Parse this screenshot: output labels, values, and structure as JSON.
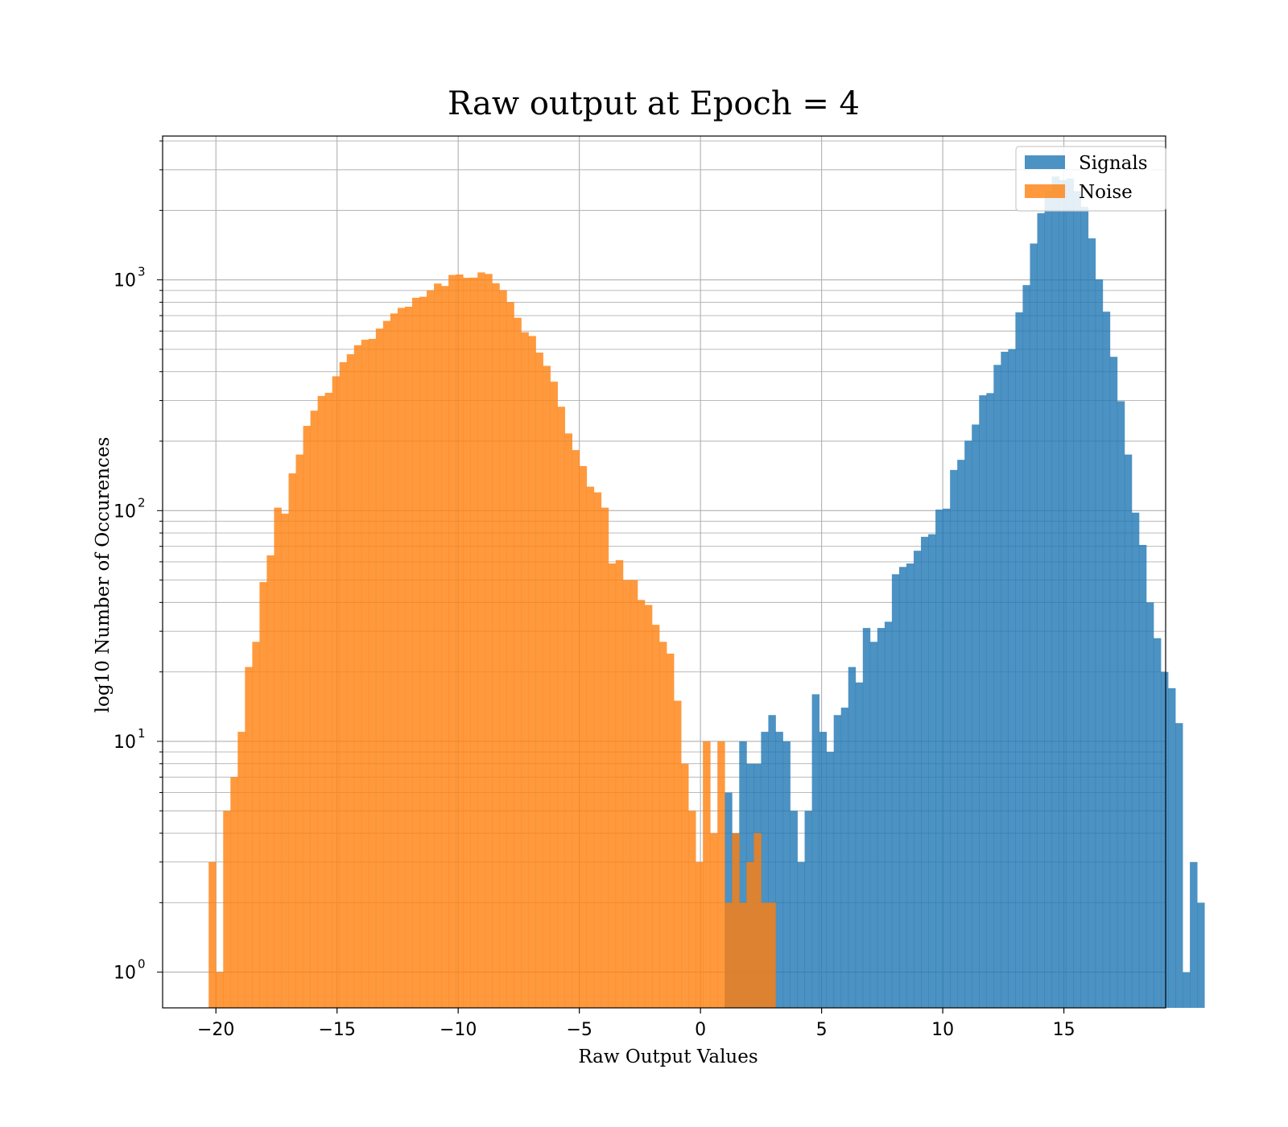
{
  "chart_data": {
    "type": "histogram",
    "title": "Raw output at Epoch = 4",
    "xlabel": "Raw Output Values",
    "ylabel": "log10 Number of Occurences",
    "xlim": [
      -22.2,
      19.2
    ],
    "ylim": [
      0.7,
      4200
    ],
    "yscale": "log",
    "grid": true,
    "legend_location": "top-right",
    "xticks": [
      -20,
      -15,
      -10,
      -5,
      0,
      5,
      10,
      15
    ],
    "xtick_labels": [
      "−20",
      "−15",
      "−10",
      "−5",
      "0",
      "5",
      "10",
      "15"
    ],
    "yticks": [
      {
        "value": 1,
        "base": "10",
        "exp": "0"
      },
      {
        "value": 10,
        "base": "10",
        "exp": "1"
      },
      {
        "value": 100,
        "base": "10",
        "exp": "2"
      },
      {
        "value": 1000,
        "base": "10",
        "exp": "3"
      }
    ],
    "series": [
      {
        "name": "Signals",
        "color": "#1f77b4",
        "alpha": 0.8,
        "bin_start": 1.0,
        "bin_width": 0.3,
        "counts": [
          6,
          4,
          10,
          8,
          8,
          11,
          13,
          11,
          10,
          5,
          3,
          5,
          16,
          11,
          9,
          13,
          14,
          21,
          18,
          31,
          27,
          31,
          33,
          53,
          57,
          59,
          67,
          77,
          79,
          101,
          102,
          150,
          166,
          201,
          236,
          316,
          323,
          428,
          488,
          501,
          723,
          949,
          1437,
          1945,
          2442,
          2806,
          2707,
          2749,
          2422,
          2074,
          1513,
          1005,
          728,
          464,
          298,
          175,
          98,
          71,
          40,
          28,
          20,
          17,
          12,
          1,
          3,
          2
        ]
      },
      {
        "name": "Noise",
        "color": "#ff7f0e",
        "alpha": 0.8,
        "bin_start": -20.3,
        "bin_width": 0.3,
        "counts": [
          3,
          1,
          5,
          7,
          11,
          21,
          27,
          49,
          64,
          103,
          97,
          145,
          175,
          233,
          271,
          314,
          324,
          382,
          440,
          476,
          521,
          550,
          555,
          615,
          664,
          715,
          756,
          765,
          836,
          845,
          901,
          964,
          941,
          1050,
          1055,
          1021,
          1023,
          1077,
          1061,
          967,
          903,
          800,
          685,
          593,
          571,
          484,
          424,
          362,
          282,
          216,
          183,
          156,
          127,
          120,
          103,
          59,
          61,
          50,
          50,
          41,
          39,
          32,
          27,
          24,
          15,
          8,
          5,
          3,
          10,
          4,
          10,
          2,
          4,
          2,
          3,
          4,
          2,
          2
        ]
      }
    ]
  }
}
